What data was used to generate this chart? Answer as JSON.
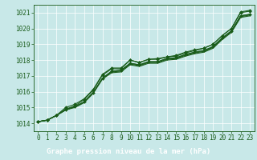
{
  "title": "Graphe pression niveau de la mer (hPa)",
  "bg_color": "#c8e8e8",
  "label_bg_color": "#2d6e2d",
  "label_text_color": "#ffffff",
  "grid_color": "#b0d8d8",
  "line_color": "#1a5c1a",
  "xlim": [
    -0.5,
    23.5
  ],
  "ylim": [
    1013.5,
    1021.5
  ],
  "yticks": [
    1014,
    1015,
    1016,
    1017,
    1018,
    1019,
    1020,
    1021
  ],
  "xticks": [
    0,
    1,
    2,
    3,
    4,
    5,
    6,
    7,
    8,
    9,
    10,
    11,
    12,
    13,
    14,
    15,
    16,
    17,
    18,
    19,
    20,
    21,
    22,
    23
  ],
  "series": [
    [
      1014.1,
      1014.2,
      1014.5,
      1014.9,
      1015.1,
      1015.4,
      1016.0,
      1017.1,
      1017.45,
      1017.45,
      1018.0,
      1017.85,
      1018.05,
      1018.1,
      1018.2,
      1018.3,
      1018.5,
      1018.65,
      1018.75,
      1019.0,
      1019.55,
      1020.0,
      1020.95,
      1021.05
    ],
    [
      1014.1,
      1014.2,
      1014.5,
      1014.9,
      1015.1,
      1015.4,
      1016.0,
      1016.9,
      1017.35,
      1017.4,
      1017.85,
      1017.75,
      1017.95,
      1017.95,
      1018.15,
      1018.2,
      1018.4,
      1018.55,
      1018.65,
      1018.9,
      1019.4,
      1019.85,
      1020.75,
      1020.85
    ],
    [
      1014.1,
      1014.2,
      1014.5,
      1014.9,
      1015.1,
      1015.4,
      1016.0,
      1016.9,
      1017.3,
      1017.35,
      1017.8,
      1017.7,
      1017.9,
      1017.9,
      1018.1,
      1018.15,
      1018.35,
      1018.5,
      1018.6,
      1018.85,
      1019.35,
      1019.8,
      1020.7,
      1020.8
    ],
    [
      1014.1,
      1014.2,
      1014.5,
      1014.9,
      1015.1,
      1015.4,
      1016.0,
      1016.9,
      1017.3,
      1017.35,
      1017.8,
      1017.7,
      1017.9,
      1017.9,
      1018.1,
      1018.15,
      1018.35,
      1018.5,
      1018.6,
      1018.85,
      1019.35,
      1019.8,
      1020.7,
      1020.8
    ],
    [
      1014.1,
      1014.2,
      1014.5,
      1014.85,
      1015.05,
      1015.35,
      1015.95,
      1016.85,
      1017.25,
      1017.3,
      1017.75,
      1017.65,
      1017.85,
      1017.85,
      1018.05,
      1018.1,
      1018.3,
      1018.45,
      1018.55,
      1018.8,
      1019.3,
      1019.75,
      1020.65,
      1020.75
    ]
  ],
  "marker_series": [
    {
      "idx": 0,
      "values": [
        1014.1,
        1014.2,
        1014.5,
        1014.9,
        1015.1,
        1015.4,
        1016.0,
        1017.1,
        1017.45,
        1017.45,
        1018.0,
        1017.85,
        1018.05,
        1018.1,
        1018.2,
        1018.3,
        1018.5,
        1018.65,
        1018.75,
        1019.0,
        1019.55,
        1020.0,
        1020.95,
        1021.05
      ]
    },
    {
      "idx": 1,
      "values": [
        null,
        null,
        null,
        null,
        null,
        null,
        null,
        1016.9,
        null,
        null,
        null,
        null,
        null,
        null,
        null,
        null,
        null,
        null,
        1018.65,
        1018.9,
        null,
        null,
        1021.1,
        1021.2
      ]
    }
  ],
  "spread_series": {
    "values": [
      1014.1,
      1014.2,
      1014.5,
      1014.9,
      1015.15,
      1015.5,
      1016.15,
      1017.05,
      1017.45,
      1017.5,
      1017.95,
      1017.85,
      1018.05,
      1018.05,
      1018.2,
      1018.3,
      1018.5,
      1018.6,
      1018.75,
      1019.1,
      1019.6,
      1020.05,
      1021.05,
      1021.15
    ]
  },
  "tick_fontsize": 5.5,
  "label_fontsize": 6.5
}
